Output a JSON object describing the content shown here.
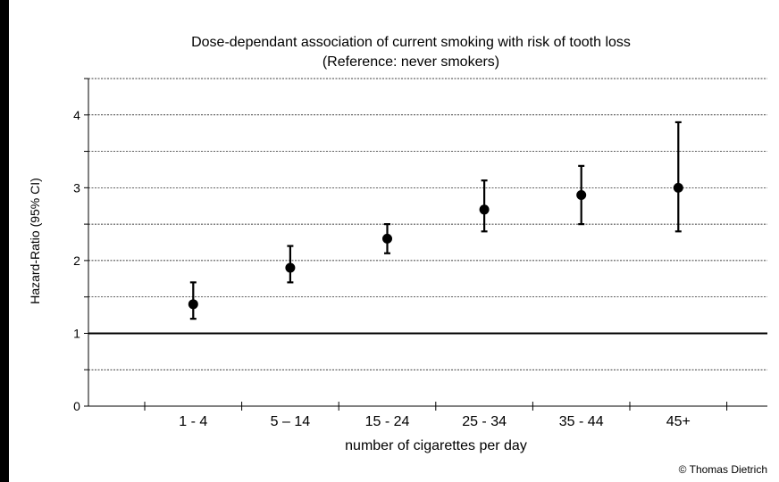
{
  "chart_data": {
    "type": "scatter",
    "title": "Dose-dependant association of current smoking with risk of tooth loss",
    "subtitle": "(Reference: never smokers)",
    "xlabel": "number of cigarettes per day",
    "ylabel": "Hazard-Ratio (95% CI)",
    "categories": [
      "1 - 4",
      "5 – 14",
      "15 - 24",
      "25 - 34",
      "35 - 44",
      "45+"
    ],
    "values": [
      1.4,
      1.9,
      2.3,
      2.7,
      2.9,
      3.0
    ],
    "ci_lower": [
      1.2,
      1.7,
      2.1,
      2.4,
      2.5,
      2.4
    ],
    "ci_upper": [
      1.7,
      2.2,
      2.5,
      3.1,
      3.3,
      3.9
    ],
    "reference_line": 1,
    "ylim": [
      0,
      4.5
    ],
    "yticks": [
      0,
      1,
      2,
      3,
      4
    ],
    "grid": true,
    "credit": "© Thomas Dietrich"
  }
}
